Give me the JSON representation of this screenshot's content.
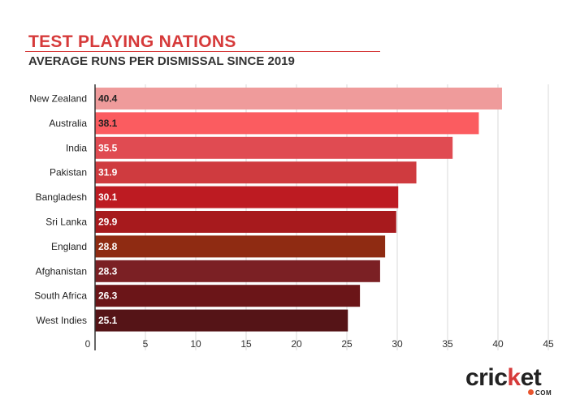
{
  "header": {
    "title": "TEST PLAYING NATIONS",
    "subtitle": "AVERAGE RUNS PER DISMISSAL SINCE 2019"
  },
  "chart_data": {
    "type": "bar",
    "orientation": "horizontal",
    "categories": [
      "New Zealand",
      "Australia",
      "India",
      "Pakistan",
      "Bangladesh",
      "Sri Lanka",
      "England",
      "Afghanistan",
      "South Africa",
      "West Indies"
    ],
    "values": [
      40.4,
      38.1,
      35.5,
      31.9,
      30.1,
      29.9,
      28.8,
      28.3,
      26.3,
      25.1
    ],
    "colors": [
      "#ef9b9b",
      "#fb5c60",
      "#e04b52",
      "#cf3b3f",
      "#bd1b22",
      "#a71a1d",
      "#8f2b12",
      "#7b2024",
      "#6b1518",
      "#551417"
    ],
    "label_colors": [
      "#222222",
      "#222222",
      "#ffffff",
      "#ffffff",
      "#ffffff",
      "#ffffff",
      "#ffffff",
      "#ffffff",
      "#ffffff",
      "#ffffff"
    ],
    "xlim": [
      0,
      45
    ],
    "xticks": [
      "0",
      "5",
      "10",
      "15",
      "20",
      "25",
      "30",
      "35",
      "40",
      "45"
    ],
    "xtick_values": [
      0,
      5,
      10,
      15,
      20,
      25,
      30,
      35,
      40,
      45
    ],
    "grid": true
  },
  "logo": {
    "word_a": "cric",
    "word_k": "k",
    "word_b": "et",
    "domain": "COM"
  }
}
